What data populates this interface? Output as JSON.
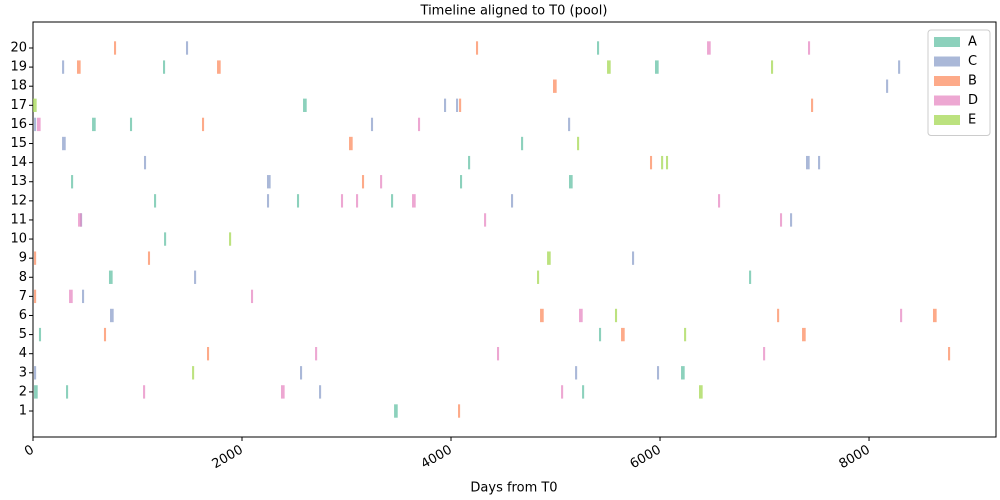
{
  "chart_data": {
    "type": "timeline",
    "title": "Timeline aligned to T0 (pool)",
    "xlabel": "Days from T0",
    "xlim": [
      0,
      9215
    ],
    "xticks": [
      0,
      2000,
      4000,
      6000,
      8000
    ],
    "ylim": [
      -0.36,
      21.36
    ],
    "yticks": [
      1,
      2,
      3,
      4,
      5,
      6,
      7,
      8,
      9,
      10,
      11,
      12,
      13,
      14,
      15,
      16,
      17,
      18,
      19,
      20
    ],
    "legend": "upper right",
    "series": [
      {
        "name": "A",
        "color": "#66c2a5",
        "x": [
          5397,
          1244,
          5952,
          2584,
          565,
          928,
          4670,
          4163,
          364,
          4086,
          5129,
          1158,
          2526,
          3426,
          1254,
          727,
          6852,
          57,
          5416,
          6201,
          10,
          316,
          5254,
          3455
        ],
        "y": [
          20,
          19,
          19,
          17,
          16,
          16,
          15,
          14,
          13,
          13,
          13,
          12,
          12,
          12,
          10,
          8,
          8,
          5,
          5,
          3,
          2,
          2,
          2,
          1
        ],
        "widths": [
          20,
          20,
          35,
          35,
          35,
          20,
          20,
          20,
          20,
          20,
          35,
          20,
          20,
          20,
          20,
          35,
          20,
          20,
          20,
          35,
          35,
          20,
          20,
          35
        ]
      },
      {
        "name": "C",
        "color": "#8da0cb",
        "x": [
          1464,
          278,
          8278,
          8163,
          3933,
          4048,
          10,
          3234,
          5120,
          278,
          1062,
          7397,
          7512,
          2239,
          2239,
          4574,
          450,
          7244,
          5732,
          1541,
          469,
          737,
          10,
          2555,
          5187,
          5971,
          2737
        ],
        "y": [
          20,
          19,
          19,
          18,
          17,
          17,
          16,
          16,
          16,
          15,
          14,
          14,
          14,
          13,
          12,
          12,
          11,
          11,
          9,
          8,
          7,
          6,
          3,
          3,
          3,
          3,
          2
        ],
        "widths": [
          20,
          20,
          20,
          20,
          20,
          20,
          20,
          20,
          20,
          35,
          20,
          35,
          20,
          35,
          20,
          20,
          20,
          20,
          20,
          20,
          20,
          35,
          20,
          20,
          20,
          20,
          20
        ]
      },
      {
        "name": "B",
        "color": "#fc8d62",
        "x": [
          775,
          4239,
          421,
          1761,
          4976,
          4077,
          7445,
          1617,
          3024,
          5904,
          3148,
          10,
          1100,
          10,
          4852,
          7120,
          8612,
          679,
          5627,
          7359,
          1665,
          8756,
          4067
        ],
        "y": [
          20,
          20,
          19,
          19,
          18,
          17,
          17,
          16,
          15,
          14,
          13,
          9,
          9,
          7,
          6,
          6,
          6,
          5,
          5,
          5,
          4,
          4,
          1
        ],
        "widths": [
          20,
          20,
          35,
          35,
          35,
          20,
          20,
          20,
          35,
          20,
          20,
          20,
          20,
          20,
          35,
          20,
          35,
          20,
          35,
          35,
          20,
          20,
          20
        ]
      },
      {
        "name": "D",
        "color": "#e78ac3",
        "x": [
          6450,
          7416,
          38,
          3684,
          3321,
          2947,
          3091,
          3627,
          6555,
          431,
          4316,
          7148,
          345,
          2086,
          5225,
          8297,
          2699,
          4440,
          6986,
          1053,
          2373,
          5053
        ],
        "y": [
          20,
          20,
          16,
          16,
          13,
          12,
          12,
          12,
          12,
          11,
          11,
          11,
          7,
          7,
          6,
          6,
          4,
          4,
          4,
          2,
          2,
          2
        ],
        "widths": [
          35,
          20,
          35,
          20,
          20,
          20,
          20,
          35,
          20,
          35,
          20,
          20,
          35,
          20,
          35,
          20,
          20,
          20,
          20,
          20,
          35,
          20
        ]
      },
      {
        "name": "E",
        "color": "#a6d854",
        "x": [
          5493,
          7062,
          0,
          5206,
          6010,
          6057,
          1876,
          4919,
          4823,
          5569,
          6230,
          1522,
          6373
        ],
        "y": [
          19,
          19,
          17,
          15,
          14,
          14,
          10,
          9,
          8,
          6,
          5,
          3,
          2
        ],
        "widths": [
          35,
          20,
          35,
          20,
          20,
          20,
          20,
          35,
          20,
          20,
          20,
          20,
          35
        ]
      }
    ]
  }
}
